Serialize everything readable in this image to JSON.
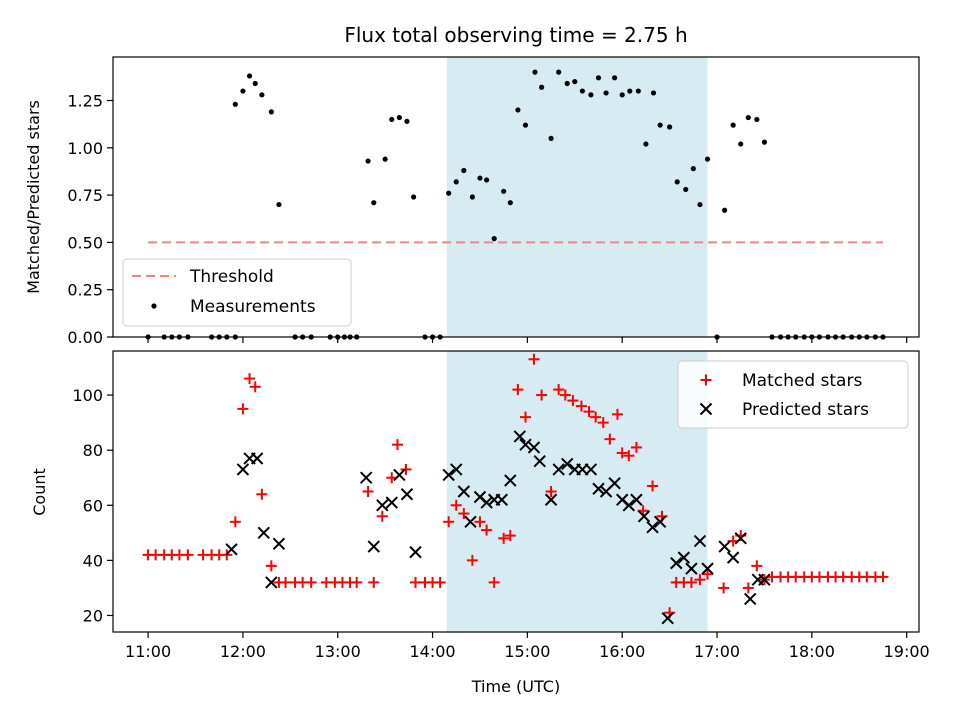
{
  "chart_data": {
    "title": "Flux total observing time = 2.75 h",
    "xlabel": "Time (UTC)",
    "x_ticks": [
      "11:00",
      "12:00",
      "13:00",
      "14:00",
      "15:00",
      "16:00",
      "17:00",
      "18:00",
      "19:00"
    ],
    "x_range_hours": [
      10.63,
      19.13
    ],
    "shaded_region_hours": [
      14.15,
      16.9
    ],
    "top": {
      "type": "scatter",
      "ylabel": "Matched/Predicted stars",
      "ylim": [
        0,
        1.48
      ],
      "y_ticks": [
        "0.00",
        "0.25",
        "0.50",
        "0.75",
        "1.00",
        "1.25"
      ],
      "threshold": 0.5,
      "threshold_x_range": [
        11.0,
        18.75
      ],
      "legend": {
        "threshold": "Threshold",
        "measurements": "Measurements",
        "position": "lower-left"
      },
      "measurements": [
        [
          11.0,
          0
        ],
        [
          11.17,
          0
        ],
        [
          11.25,
          0
        ],
        [
          11.33,
          0
        ],
        [
          11.42,
          0
        ],
        [
          11.67,
          0
        ],
        [
          11.75,
          0
        ],
        [
          11.83,
          0
        ],
        [
          11.92,
          0
        ],
        [
          11.92,
          1.23
        ],
        [
          12.0,
          1.3
        ],
        [
          12.07,
          1.38
        ],
        [
          12.13,
          1.34
        ],
        [
          12.2,
          1.28
        ],
        [
          12.3,
          1.19
        ],
        [
          12.38,
          0.7
        ],
        [
          12.55,
          0
        ],
        [
          12.63,
          0
        ],
        [
          12.72,
          0
        ],
        [
          12.92,
          0
        ],
        [
          13.0,
          0
        ],
        [
          13.07,
          0
        ],
        [
          13.13,
          0
        ],
        [
          13.2,
          0
        ],
        [
          13.32,
          0.93
        ],
        [
          13.38,
          0.71
        ],
        [
          13.5,
          0.94
        ],
        [
          13.57,
          1.15
        ],
        [
          13.65,
          1.16
        ],
        [
          13.73,
          1.14
        ],
        [
          13.8,
          0.74
        ],
        [
          13.92,
          0
        ],
        [
          14.0,
          0
        ],
        [
          14.08,
          0
        ],
        [
          14.17,
          0.76
        ],
        [
          14.25,
          0.82
        ],
        [
          14.33,
          0.88
        ],
        [
          14.42,
          0.74
        ],
        [
          14.5,
          0.84
        ],
        [
          14.57,
          0.83
        ],
        [
          14.65,
          0.52
        ],
        [
          14.75,
          0.77
        ],
        [
          14.82,
          0.71
        ],
        [
          14.9,
          1.2
        ],
        [
          14.98,
          1.12
        ],
        [
          15.08,
          1.4
        ],
        [
          15.15,
          1.32
        ],
        [
          15.25,
          1.05
        ],
        [
          15.33,
          1.4
        ],
        [
          15.42,
          1.34
        ],
        [
          15.5,
          1.35
        ],
        [
          15.58,
          1.3
        ],
        [
          15.67,
          1.28
        ],
        [
          15.75,
          1.37
        ],
        [
          15.83,
          1.29
        ],
        [
          15.92,
          1.37
        ],
        [
          16.0,
          1.28
        ],
        [
          16.08,
          1.3
        ],
        [
          16.17,
          1.3
        ],
        [
          16.25,
          1.02
        ],
        [
          16.33,
          1.29
        ],
        [
          16.4,
          1.12
        ],
        [
          16.5,
          1.11
        ],
        [
          16.58,
          0.82
        ],
        [
          16.67,
          0.78
        ],
        [
          16.75,
          0.89
        ],
        [
          16.82,
          0.7
        ],
        [
          16.9,
          0.94
        ],
        [
          17.0,
          0
        ],
        [
          17.08,
          0.67
        ],
        [
          17.17,
          1.12
        ],
        [
          17.25,
          1.02
        ],
        [
          17.33,
          1.16
        ],
        [
          17.42,
          1.15
        ],
        [
          17.5,
          1.03
        ],
        [
          17.58,
          0
        ],
        [
          17.67,
          0
        ],
        [
          17.75,
          0
        ],
        [
          17.83,
          0
        ],
        [
          17.92,
          0
        ],
        [
          18.0,
          0
        ],
        [
          18.08,
          0
        ],
        [
          18.17,
          0
        ],
        [
          18.25,
          0
        ],
        [
          18.33,
          0
        ],
        [
          18.42,
          0
        ],
        [
          18.5,
          0
        ],
        [
          18.58,
          0
        ],
        [
          18.67,
          0
        ],
        [
          18.75,
          0
        ]
      ]
    },
    "bottom": {
      "type": "scatter",
      "ylabel": "Count",
      "ylim": [
        14,
        116
      ],
      "y_ticks": [
        "20",
        "40",
        "60",
        "80",
        "100"
      ],
      "legend": {
        "matched": "Matched stars",
        "predicted": "Predicted stars",
        "position": "top-right"
      },
      "matched": [
        [
          11.0,
          42
        ],
        [
          11.08,
          42
        ],
        [
          11.17,
          42
        ],
        [
          11.25,
          42
        ],
        [
          11.33,
          42
        ],
        [
          11.42,
          42
        ],
        [
          11.58,
          42
        ],
        [
          11.67,
          42
        ],
        [
          11.75,
          42
        ],
        [
          11.83,
          42
        ],
        [
          11.92,
          54
        ],
        [
          12.0,
          95
        ],
        [
          12.07,
          106
        ],
        [
          12.13,
          103
        ],
        [
          12.2,
          64
        ],
        [
          12.3,
          38
        ],
        [
          12.38,
          32
        ],
        [
          12.45,
          32
        ],
        [
          12.55,
          32
        ],
        [
          12.63,
          32
        ],
        [
          12.72,
          32
        ],
        [
          12.88,
          32
        ],
        [
          12.97,
          32
        ],
        [
          13.05,
          32
        ],
        [
          13.13,
          32
        ],
        [
          13.2,
          32
        ],
        [
          13.32,
          65
        ],
        [
          13.38,
          32
        ],
        [
          13.47,
          56
        ],
        [
          13.57,
          70
        ],
        [
          13.63,
          82
        ],
        [
          13.72,
          73
        ],
        [
          13.82,
          32
        ],
        [
          13.92,
          32
        ],
        [
          14.0,
          32
        ],
        [
          14.08,
          32
        ],
        [
          14.17,
          54
        ],
        [
          14.25,
          60
        ],
        [
          14.33,
          57
        ],
        [
          14.42,
          40
        ],
        [
          14.5,
          54
        ],
        [
          14.57,
          51
        ],
        [
          14.65,
          32
        ],
        [
          14.75,
          48
        ],
        [
          14.82,
          49
        ],
        [
          14.9,
          102
        ],
        [
          14.98,
          92
        ],
        [
          15.07,
          113
        ],
        [
          15.15,
          100
        ],
        [
          15.25,
          65
        ],
        [
          15.33,
          102
        ],
        [
          15.4,
          100
        ],
        [
          15.48,
          98
        ],
        [
          15.57,
          96
        ],
        [
          15.65,
          94
        ],
        [
          15.72,
          92
        ],
        [
          15.8,
          90
        ],
        [
          15.87,
          84
        ],
        [
          15.95,
          93
        ],
        [
          16.0,
          79
        ],
        [
          16.07,
          78
        ],
        [
          16.15,
          81
        ],
        [
          16.22,
          58
        ],
        [
          16.32,
          67
        ],
        [
          16.42,
          56
        ],
        [
          16.5,
          21
        ],
        [
          16.57,
          32
        ],
        [
          16.65,
          32
        ],
        [
          16.73,
          32
        ],
        [
          16.82,
          33
        ],
        [
          16.9,
          35
        ],
        [
          17.07,
          30
        ],
        [
          17.17,
          47
        ],
        [
          17.25,
          49
        ],
        [
          17.33,
          30
        ],
        [
          17.42,
          38
        ],
        [
          17.5,
          33
        ],
        [
          17.58,
          34
        ],
        [
          17.67,
          34
        ],
        [
          17.75,
          34
        ],
        [
          17.83,
          34
        ],
        [
          17.92,
          34
        ],
        [
          18.0,
          34
        ],
        [
          18.08,
          34
        ],
        [
          18.17,
          34
        ],
        [
          18.25,
          34
        ],
        [
          18.33,
          34
        ],
        [
          18.42,
          34
        ],
        [
          18.5,
          34
        ],
        [
          18.58,
          34
        ],
        [
          18.67,
          34
        ],
        [
          18.75,
          34
        ]
      ],
      "predicted": [
        [
          11.88,
          44
        ],
        [
          12.0,
          73
        ],
        [
          12.07,
          77
        ],
        [
          12.15,
          77
        ],
        [
          12.22,
          50
        ],
        [
          12.3,
          32
        ],
        [
          12.38,
          46
        ],
        [
          13.3,
          70
        ],
        [
          13.38,
          45
        ],
        [
          13.47,
          60
        ],
        [
          13.57,
          61
        ],
        [
          13.65,
          71
        ],
        [
          13.73,
          64
        ],
        [
          13.82,
          43
        ],
        [
          14.17,
          71
        ],
        [
          14.25,
          73
        ],
        [
          14.33,
          65
        ],
        [
          14.4,
          54
        ],
        [
          14.5,
          63
        ],
        [
          14.57,
          61
        ],
        [
          14.65,
          62
        ],
        [
          14.73,
          62
        ],
        [
          14.82,
          69
        ],
        [
          14.92,
          85
        ],
        [
          14.98,
          82
        ],
        [
          15.07,
          81
        ],
        [
          15.13,
          76
        ],
        [
          15.25,
          62
        ],
        [
          15.33,
          73
        ],
        [
          15.42,
          75
        ],
        [
          15.5,
          73
        ],
        [
          15.58,
          73
        ],
        [
          15.67,
          73
        ],
        [
          15.75,
          66
        ],
        [
          15.83,
          65
        ],
        [
          15.92,
          68
        ],
        [
          16.0,
          62
        ],
        [
          16.07,
          60
        ],
        [
          16.15,
          62
        ],
        [
          16.23,
          56
        ],
        [
          16.32,
          52
        ],
        [
          16.4,
          54
        ],
        [
          16.48,
          19
        ],
        [
          16.57,
          39
        ],
        [
          16.65,
          41
        ],
        [
          16.73,
          37
        ],
        [
          16.82,
          47
        ],
        [
          16.9,
          37
        ],
        [
          17.08,
          45
        ],
        [
          17.17,
          41
        ],
        [
          17.25,
          48
        ],
        [
          17.35,
          26
        ],
        [
          17.43,
          33
        ],
        [
          17.5,
          33
        ]
      ]
    }
  },
  "colors": {
    "shade": "#add8e6",
    "threshold": "#ff7f7f",
    "measurement": "#000000",
    "matched": "#ff0000",
    "predicted": "#000000"
  }
}
